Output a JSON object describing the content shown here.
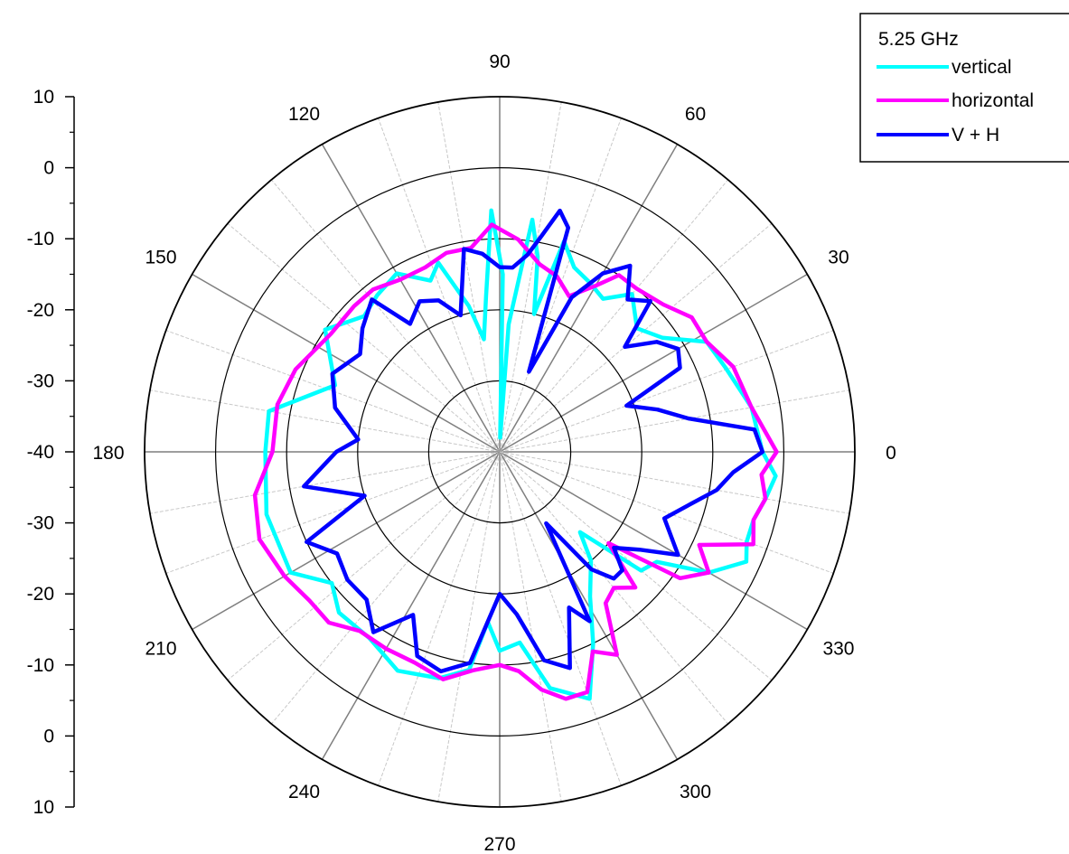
{
  "chart_data": {
    "type": "line",
    "subtype": "polar",
    "title": "",
    "angular_axis": {
      "unit": "degrees",
      "range": [
        0,
        360
      ],
      "labels": [
        "0",
        "30",
        "60",
        "90",
        "120",
        "150",
        "180",
        "210",
        "240",
        "270",
        "300",
        "330"
      ]
    },
    "radial_axis": {
      "range": [
        -40,
        10
      ],
      "rings": [
        -30,
        -20,
        -10,
        0,
        10
      ],
      "tick_labels_upper": [
        "10",
        "0",
        "-10",
        "-20",
        "-30",
        "-40"
      ],
      "tick_labels_lower": [
        "-30",
        "-20",
        "-10",
        "0",
        "10"
      ]
    },
    "grid": true,
    "legend": {
      "position": "top-right",
      "title": "5.25 GHz"
    },
    "series": [
      {
        "name": "vertical",
        "color": "#00ffff",
        "points": [
          [
            0,
            -3
          ],
          [
            10,
            -4
          ],
          [
            20,
            -6
          ],
          [
            28,
            -7
          ],
          [
            35,
            -12
          ],
          [
            42,
            -14
          ],
          [
            50,
            -11
          ],
          [
            56,
            -14
          ],
          [
            62,
            -13
          ],
          [
            68,
            -12
          ],
          [
            73,
            -9
          ],
          [
            76,
            -20
          ],
          [
            79,
            -12
          ],
          [
            82,
            -7
          ],
          [
            86,
            -22
          ],
          [
            88,
            -38
          ],
          [
            89,
            -15
          ],
          [
            92,
            -6
          ],
          [
            95,
            -18
          ],
          [
            98,
            -24
          ],
          [
            102,
            -19
          ],
          [
            108,
            -12
          ],
          [
            112,
            -14
          ],
          [
            120,
            -11
          ],
          [
            128,
            -12
          ],
          [
            135,
            -13
          ],
          [
            145,
            -10
          ],
          [
            158,
            -15
          ],
          [
            170,
            -7
          ],
          [
            180,
            -7
          ],
          [
            195,
            -6
          ],
          [
            210,
            -6
          ],
          [
            218,
            -10
          ],
          [
            225,
            -8
          ],
          [
            235,
            -8
          ],
          [
            245,
            -6
          ],
          [
            255,
            -7
          ],
          [
            262,
            -9
          ],
          [
            266,
            -16
          ],
          [
            270,
            -12
          ],
          [
            276,
            -13
          ],
          [
            282,
            -6
          ],
          [
            290,
            -3
          ],
          [
            296,
            -10
          ],
          [
            302,
            -16
          ],
          [
            310,
            -20
          ],
          [
            315,
            -24
          ],
          [
            320,
            -14
          ],
          [
            325,
            -13
          ],
          [
            330,
            -6
          ],
          [
            336,
            -2
          ],
          [
            340,
            -3
          ],
          [
            345,
            -3
          ],
          [
            350,
            -2
          ],
          [
            355,
            -1
          ]
        ]
      },
      {
        "name": "horizontal",
        "color": "#ff00ff",
        "points": [
          [
            0,
            -1
          ],
          [
            10,
            -4
          ],
          [
            20,
            -5
          ],
          [
            28,
            -7
          ],
          [
            35,
            -7
          ],
          [
            42,
            -9
          ],
          [
            50,
            -10
          ],
          [
            56,
            -10
          ],
          [
            60,
            -13
          ],
          [
            66,
            -16
          ],
          [
            72,
            -14
          ],
          [
            78,
            -13
          ],
          [
            85,
            -10
          ],
          [
            92,
            -8
          ],
          [
            98,
            -11
          ],
          [
            105,
            -11
          ],
          [
            112,
            -12
          ],
          [
            120,
            -12
          ],
          [
            128,
            -11
          ],
          [
            135,
            -11
          ],
          [
            145,
            -11
          ],
          [
            158,
            -9
          ],
          [
            168,
            -8
          ],
          [
            180,
            -8
          ],
          [
            190,
            -5
          ],
          [
            200,
            -4
          ],
          [
            210,
            -5
          ],
          [
            218,
            -6
          ],
          [
            225,
            -6
          ],
          [
            232,
            -8
          ],
          [
            240,
            -8
          ],
          [
            248,
            -8
          ],
          [
            256,
            -7
          ],
          [
            263,
            -9
          ],
          [
            270,
            -10
          ],
          [
            275,
            -9
          ],
          [
            280,
            -6
          ],
          [
            285,
            -4
          ],
          [
            290,
            -4
          ],
          [
            295,
            -9
          ],
          [
            300,
            -7
          ],
          [
            305,
            -14
          ],
          [
            310,
            -15
          ],
          [
            315,
            -13
          ],
          [
            320,
            -20
          ],
          [
            325,
            -9
          ],
          [
            330,
            -6
          ],
          [
            335,
            -9
          ],
          [
            340,
            -2
          ],
          [
            345,
            -3
          ],
          [
            350,
            -2
          ],
          [
            355,
            -3
          ]
        ]
      },
      {
        "name": "V + H",
        "color": "#0000ff",
        "points": [
          [
            0,
            -3
          ],
          [
            5,
            -4
          ],
          [
            10,
            -13
          ],
          [
            15,
            -17
          ],
          [
            20,
            -21
          ],
          [
            25,
            -12
          ],
          [
            30,
            -11
          ],
          [
            35,
            -13
          ],
          [
            40,
            -17
          ],
          [
            45,
            -10
          ],
          [
            50,
            -12
          ],
          [
            55,
            -8
          ],
          [
            60,
            -11
          ],
          [
            65,
            -16
          ],
          [
            70,
            -28
          ],
          [
            73,
            -7
          ],
          [
            76,
            -5
          ],
          [
            79,
            -9
          ],
          [
            82,
            -12
          ],
          [
            86,
            -14
          ],
          [
            90,
            -14
          ],
          [
            95,
            -12
          ],
          [
            100,
            -11
          ],
          [
            106,
            -20
          ],
          [
            112,
            -17
          ],
          [
            118,
            -16
          ],
          [
            125,
            -18
          ],
          [
            130,
            -12
          ],
          [
            138,
            -14
          ],
          [
            145,
            -16
          ],
          [
            155,
            -14
          ],
          [
            165,
            -16
          ],
          [
            175,
            -20
          ],
          [
            180,
            -17
          ],
          [
            190,
            -12
          ],
          [
            198,
            -20
          ],
          [
            205,
            -10
          ],
          [
            212,
            -13
          ],
          [
            220,
            -12
          ],
          [
            228,
            -12
          ],
          [
            235,
            -9
          ],
          [
            242,
            -14
          ],
          [
            248,
            -9
          ],
          [
            255,
            -8
          ],
          [
            262,
            -10
          ],
          [
            270,
            -20
          ],
          [
            276,
            -17
          ],
          [
            282,
            -10
          ],
          [
            288,
            -8
          ],
          [
            294,
            -16
          ],
          [
            298,
            -13
          ],
          [
            303,
            -28
          ],
          [
            308,
            -19
          ],
          [
            312,
            -16
          ],
          [
            316,
            -16
          ],
          [
            320,
            -19
          ],
          [
            325,
            -16
          ],
          [
            330,
            -11
          ],
          [
            338,
            -15
          ],
          [
            345,
            -12
          ],
          [
            350,
            -9
          ],
          [
            355,
            -7
          ]
        ]
      }
    ]
  }
}
